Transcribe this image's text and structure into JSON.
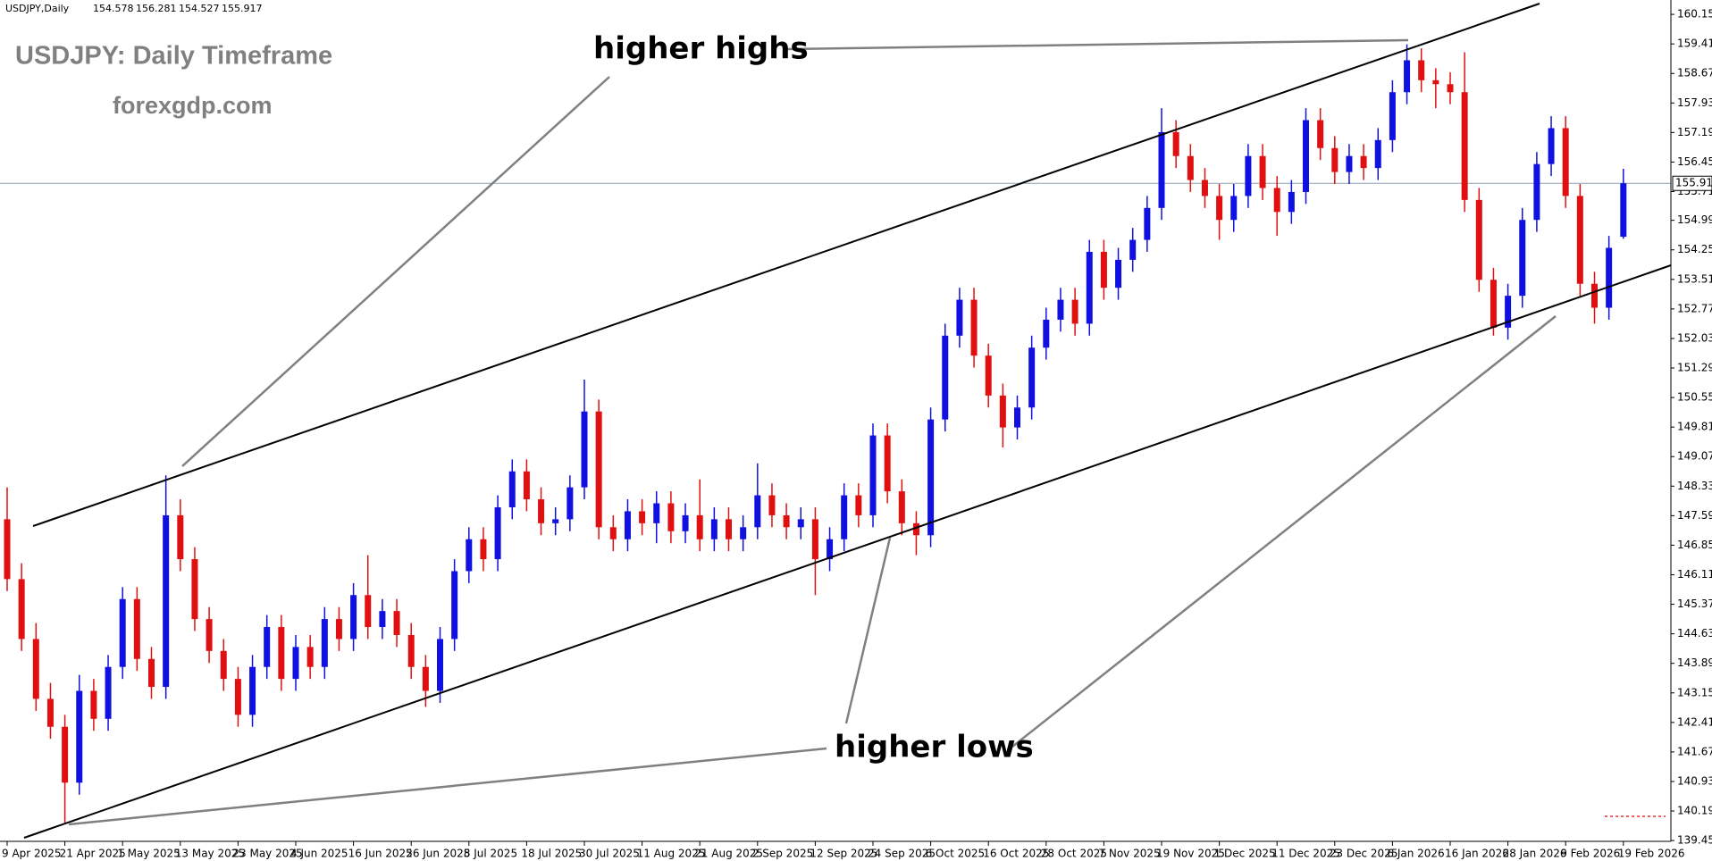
{
  "chart_data": {
    "type": "candlestick",
    "header": {
      "symbol": "USDJPY,Daily"
    },
    "title": "USDJPY: Daily Timeframe",
    "subtitle": "forexgdp.com",
    "annotations": [
      "higher highs",
      "higher lows"
    ],
    "up_color": "#1010e0",
    "down_color": "#e01010",
    "price_line_color": "#8aa0b0",
    "ylim": [
      139.43,
      160.51
    ],
    "yticks": [
      {
        "value": 160.15,
        "label": "160.150"
      },
      {
        "value": 159.41,
        "label": "159.410"
      },
      {
        "value": 158.67,
        "label": "158.670"
      },
      {
        "value": 157.93,
        "label": "157.930"
      },
      {
        "value": 157.19,
        "label": "157.190"
      },
      {
        "value": 156.45,
        "label": "156.450"
      },
      {
        "value": 155.71,
        "label": "155.710"
      },
      {
        "value": 154.99,
        "label": "154.990"
      },
      {
        "value": 154.25,
        "label": "154.250"
      },
      {
        "value": 153.51,
        "label": "153.510"
      },
      {
        "value": 152.77,
        "label": "152.770"
      },
      {
        "value": 152.03,
        "label": "152.030"
      },
      {
        "value": 151.29,
        "label": "151.290"
      },
      {
        "value": 150.55,
        "label": "150.550"
      },
      {
        "value": 149.81,
        "label": "149.810"
      },
      {
        "value": 149.07,
        "label": "149.070"
      },
      {
        "value": 148.33,
        "label": "148.330"
      },
      {
        "value": 147.59,
        "label": "147.590"
      },
      {
        "value": 146.85,
        "label": "146.850"
      },
      {
        "value": 146.11,
        "label": "146.110"
      },
      {
        "value": 145.37,
        "label": "145.370"
      },
      {
        "value": 144.63,
        "label": "144.630"
      },
      {
        "value": 143.89,
        "label": "143.890"
      },
      {
        "value": 143.15,
        "label": "143.150"
      },
      {
        "value": 142.41,
        "label": "142.410"
      },
      {
        "value": 141.67,
        "label": "141.670"
      },
      {
        "value": 140.93,
        "label": "140.930"
      },
      {
        "value": 140.19,
        "label": "140.190"
      },
      {
        "value": 139.45,
        "label": "139.450"
      }
    ],
    "categories": [
      "9 Apr 2025",
      null,
      null,
      null,
      "21 Apr 2025",
      null,
      null,
      null,
      "1 May 2025",
      null,
      null,
      null,
      "13 May 2025",
      null,
      null,
      null,
      "23 May 2025",
      null,
      null,
      null,
      "4 Jun 2025",
      null,
      null,
      null,
      "16 Jun 2025",
      null,
      null,
      null,
      "26 Jun 2025",
      null,
      null,
      null,
      "8 Jul 2025",
      null,
      null,
      null,
      "18 Jul 2025",
      null,
      null,
      null,
      "30 Jul 2025",
      null,
      null,
      null,
      "11 Aug 2025",
      null,
      null,
      null,
      "21 Aug 2025",
      null,
      null,
      null,
      "2 Sep 2025",
      null,
      null,
      null,
      "12 Sep 2025",
      null,
      null,
      null,
      "24 Sep 2025",
      null,
      null,
      null,
      "6 Oct 2025",
      null,
      null,
      null,
      "16 Oct 2025",
      null,
      null,
      null,
      "28 Oct 2025",
      null,
      null,
      null,
      "7 Nov 2025",
      null,
      null,
      null,
      "19 Nov 2025",
      null,
      null,
      null,
      "1 Dec 2025",
      null,
      null,
      null,
      "11 Dec 2025",
      null,
      null,
      null,
      "23 Dec 2025",
      null,
      null,
      null,
      "6 Jan 2026",
      null,
      null,
      null,
      "16 Jan 2026",
      null,
      null,
      null,
      "28 Jan 2026",
      null,
      null,
      null,
      "9 Feb 2026",
      null,
      null,
      null,
      "19 Feb 2026"
    ],
    "ohlc": [
      [
        147.5,
        148.3,
        145.7,
        146.0
      ],
      [
        146.0,
        146.4,
        144.2,
        144.5
      ],
      [
        144.5,
        144.9,
        142.7,
        143.0
      ],
      [
        143.0,
        143.4,
        142.0,
        142.3
      ],
      [
        142.3,
        142.6,
        139.9,
        140.9
      ],
      [
        140.9,
        143.6,
        140.6,
        143.2
      ],
      [
        143.2,
        143.5,
        142.2,
        142.5
      ],
      [
        142.5,
        144.1,
        142.2,
        143.8
      ],
      [
        143.8,
        145.8,
        143.5,
        145.5
      ],
      [
        145.5,
        145.8,
        143.7,
        144.0
      ],
      [
        144.0,
        144.3,
        143.0,
        143.3
      ],
      [
        143.3,
        148.6,
        143.0,
        147.6
      ],
      [
        147.6,
        148.0,
        146.2,
        146.5
      ],
      [
        146.5,
        146.8,
        144.7,
        145.0
      ],
      [
        145.0,
        145.3,
        143.9,
        144.2
      ],
      [
        144.2,
        144.5,
        143.2,
        143.5
      ],
      [
        143.5,
        143.8,
        142.3,
        142.6
      ],
      [
        142.6,
        144.1,
        142.3,
        143.8
      ],
      [
        143.8,
        145.1,
        143.5,
        144.8
      ],
      [
        144.8,
        145.1,
        143.2,
        143.5
      ],
      [
        143.5,
        144.6,
        143.2,
        144.3
      ],
      [
        144.3,
        144.6,
        143.5,
        143.8
      ],
      [
        143.8,
        145.3,
        143.5,
        145.0
      ],
      [
        145.0,
        145.3,
        144.2,
        144.5
      ],
      [
        144.5,
        145.9,
        144.2,
        145.6
      ],
      [
        145.6,
        146.6,
        144.5,
        144.8
      ],
      [
        144.8,
        145.5,
        144.5,
        145.2
      ],
      [
        145.2,
        145.5,
        144.3,
        144.6
      ],
      [
        144.6,
        144.9,
        143.5,
        143.8
      ],
      [
        143.8,
        144.1,
        142.8,
        143.2
      ],
      [
        143.2,
        144.8,
        142.9,
        144.5
      ],
      [
        144.5,
        146.5,
        144.2,
        146.2
      ],
      [
        146.2,
        147.3,
        145.9,
        147.0
      ],
      [
        147.0,
        147.3,
        146.2,
        146.5
      ],
      [
        146.5,
        148.1,
        146.2,
        147.8
      ],
      [
        147.8,
        149.0,
        147.5,
        148.7
      ],
      [
        148.7,
        149.0,
        147.7,
        148.0
      ],
      [
        148.0,
        148.3,
        147.1,
        147.4
      ],
      [
        147.4,
        147.8,
        147.1,
        147.5
      ],
      [
        147.5,
        148.6,
        147.2,
        148.3
      ],
      [
        148.3,
        151.0,
        148.0,
        150.2
      ],
      [
        150.2,
        150.5,
        147.0,
        147.3
      ],
      [
        147.3,
        147.6,
        146.7,
        147.0
      ],
      [
        147.0,
        148.0,
        146.7,
        147.7
      ],
      [
        147.7,
        148.0,
        147.1,
        147.4
      ],
      [
        147.4,
        148.2,
        146.9,
        147.9
      ],
      [
        147.9,
        148.2,
        146.9,
        147.2
      ],
      [
        147.2,
        147.9,
        146.9,
        147.6
      ],
      [
        147.6,
        148.5,
        146.7,
        147.0
      ],
      [
        147.0,
        147.8,
        146.7,
        147.5
      ],
      [
        147.5,
        147.8,
        146.7,
        147.0
      ],
      [
        147.0,
        147.6,
        146.7,
        147.3
      ],
      [
        147.3,
        148.9,
        147.0,
        148.1
      ],
      [
        148.1,
        148.4,
        147.3,
        147.6
      ],
      [
        147.6,
        147.9,
        147.0,
        147.3
      ],
      [
        147.3,
        147.8,
        147.0,
        147.5
      ],
      [
        147.5,
        147.8,
        145.6,
        146.5
      ],
      [
        146.5,
        147.3,
        146.2,
        147.0
      ],
      [
        147.0,
        148.4,
        146.7,
        148.1
      ],
      [
        148.1,
        148.4,
        147.3,
        147.6
      ],
      [
        147.6,
        149.9,
        147.3,
        149.6
      ],
      [
        149.6,
        149.9,
        147.9,
        148.2
      ],
      [
        148.2,
        148.5,
        147.1,
        147.4
      ],
      [
        147.4,
        147.7,
        146.6,
        147.1
      ],
      [
        147.1,
        150.3,
        146.8,
        150.0
      ],
      [
        150.0,
        152.4,
        149.7,
        152.1
      ],
      [
        152.1,
        153.3,
        151.8,
        153.0
      ],
      [
        153.0,
        153.3,
        151.3,
        151.6
      ],
      [
        151.6,
        151.9,
        150.3,
        150.6
      ],
      [
        150.6,
        150.9,
        149.3,
        149.8
      ],
      [
        149.8,
        150.6,
        149.5,
        150.3
      ],
      [
        150.3,
        152.1,
        150.0,
        151.8
      ],
      [
        151.8,
        152.8,
        151.5,
        152.5
      ],
      [
        152.5,
        153.3,
        152.2,
        153.0
      ],
      [
        153.0,
        153.3,
        152.1,
        152.4
      ],
      [
        152.4,
        154.5,
        152.1,
        154.2
      ],
      [
        154.2,
        154.5,
        153.0,
        153.3
      ],
      [
        153.3,
        154.3,
        153.0,
        154.0
      ],
      [
        154.0,
        154.8,
        153.7,
        154.5
      ],
      [
        154.5,
        155.6,
        154.2,
        155.3
      ],
      [
        155.3,
        157.8,
        155.0,
        157.2
      ],
      [
        157.2,
        157.5,
        156.3,
        156.6
      ],
      [
        156.6,
        156.9,
        155.7,
        156.0
      ],
      [
        156.0,
        156.3,
        155.3,
        155.6
      ],
      [
        155.6,
        155.9,
        154.5,
        155.0
      ],
      [
        155.0,
        155.9,
        154.7,
        155.6
      ],
      [
        155.6,
        156.9,
        155.3,
        156.6
      ],
      [
        156.6,
        156.9,
        155.5,
        155.8
      ],
      [
        155.8,
        156.1,
        154.6,
        155.2
      ],
      [
        155.2,
        156.0,
        154.9,
        155.7
      ],
      [
        155.7,
        157.8,
        155.4,
        157.5
      ],
      [
        157.5,
        157.8,
        156.5,
        156.8
      ],
      [
        156.8,
        157.1,
        155.9,
        156.2
      ],
      [
        156.2,
        156.9,
        155.9,
        156.6
      ],
      [
        156.6,
        156.9,
        156.0,
        156.3
      ],
      [
        156.3,
        157.3,
        156.0,
        157.0
      ],
      [
        157.0,
        158.5,
        156.7,
        158.2
      ],
      [
        158.2,
        159.4,
        157.9,
        159.0
      ],
      [
        159.0,
        159.3,
        158.2,
        158.5
      ],
      [
        158.5,
        158.8,
        157.8,
        158.4
      ],
      [
        158.4,
        158.7,
        157.9,
        158.2
      ],
      [
        158.2,
        159.2,
        155.2,
        155.5
      ],
      [
        155.5,
        155.8,
        153.2,
        153.5
      ],
      [
        153.5,
        153.8,
        152.1,
        152.3
      ],
      [
        152.3,
        153.4,
        152.0,
        153.1
      ],
      [
        153.1,
        155.3,
        152.8,
        155.0
      ],
      [
        155.0,
        156.7,
        154.7,
        156.4
      ],
      [
        156.4,
        157.6,
        156.1,
        157.3
      ],
      [
        157.3,
        157.6,
        155.3,
        155.6
      ],
      [
        155.6,
        155.9,
        153.1,
        153.4
      ],
      [
        153.4,
        153.7,
        152.4,
        152.8
      ],
      [
        152.8,
        154.6,
        152.5,
        154.3
      ],
      [
        154.578,
        156.281,
        154.527,
        155.917
      ]
    ]
  }
}
